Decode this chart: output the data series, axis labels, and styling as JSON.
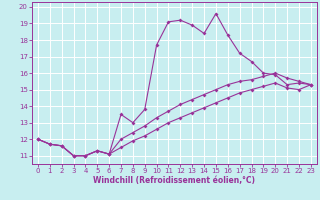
{
  "xlabel": "Windchill (Refroidissement éolien,°C)",
  "xlim": [
    -0.5,
    23.5
  ],
  "ylim": [
    10.5,
    20.3
  ],
  "yticks": [
    11,
    12,
    13,
    14,
    15,
    16,
    17,
    18,
    19,
    20
  ],
  "xticks": [
    0,
    1,
    2,
    3,
    4,
    5,
    6,
    7,
    8,
    9,
    10,
    11,
    12,
    13,
    14,
    15,
    16,
    17,
    18,
    19,
    20,
    21,
    22,
    23
  ],
  "bg_color": "#c8eef0",
  "line_color": "#993399",
  "grid_color": "#ffffff",
  "line1_x": [
    0,
    1,
    2,
    3,
    4,
    5,
    6,
    7,
    8,
    9,
    10,
    11,
    12,
    13,
    14,
    15,
    16,
    17,
    18,
    19,
    20,
    21,
    22,
    23
  ],
  "line1_y": [
    12.0,
    11.7,
    11.6,
    11.0,
    11.0,
    11.3,
    11.1,
    13.5,
    13.0,
    13.8,
    17.7,
    19.1,
    19.2,
    18.9,
    18.4,
    19.6,
    18.3,
    17.2,
    16.7,
    16.0,
    15.9,
    15.3,
    15.4,
    15.3
  ],
  "line2_x": [
    0,
    1,
    2,
    3,
    4,
    5,
    6,
    7,
    8,
    9,
    10,
    11,
    12,
    13,
    14,
    15,
    16,
    17,
    18,
    19,
    20,
    21,
    22,
    23
  ],
  "line2_y": [
    12.0,
    11.7,
    11.6,
    11.0,
    11.0,
    11.3,
    11.1,
    12.0,
    12.4,
    12.8,
    13.3,
    13.7,
    14.1,
    14.4,
    14.7,
    15.0,
    15.3,
    15.5,
    15.6,
    15.8,
    16.0,
    15.7,
    15.5,
    15.3
  ],
  "line3_x": [
    0,
    1,
    2,
    3,
    4,
    5,
    6,
    7,
    8,
    9,
    10,
    11,
    12,
    13,
    14,
    15,
    16,
    17,
    18,
    19,
    20,
    21,
    22,
    23
  ],
  "line3_y": [
    12.0,
    11.7,
    11.6,
    11.0,
    11.0,
    11.3,
    11.1,
    11.5,
    11.9,
    12.2,
    12.6,
    13.0,
    13.3,
    13.6,
    13.9,
    14.2,
    14.5,
    14.8,
    15.0,
    15.2,
    15.4,
    15.1,
    15.0,
    15.3
  ]
}
